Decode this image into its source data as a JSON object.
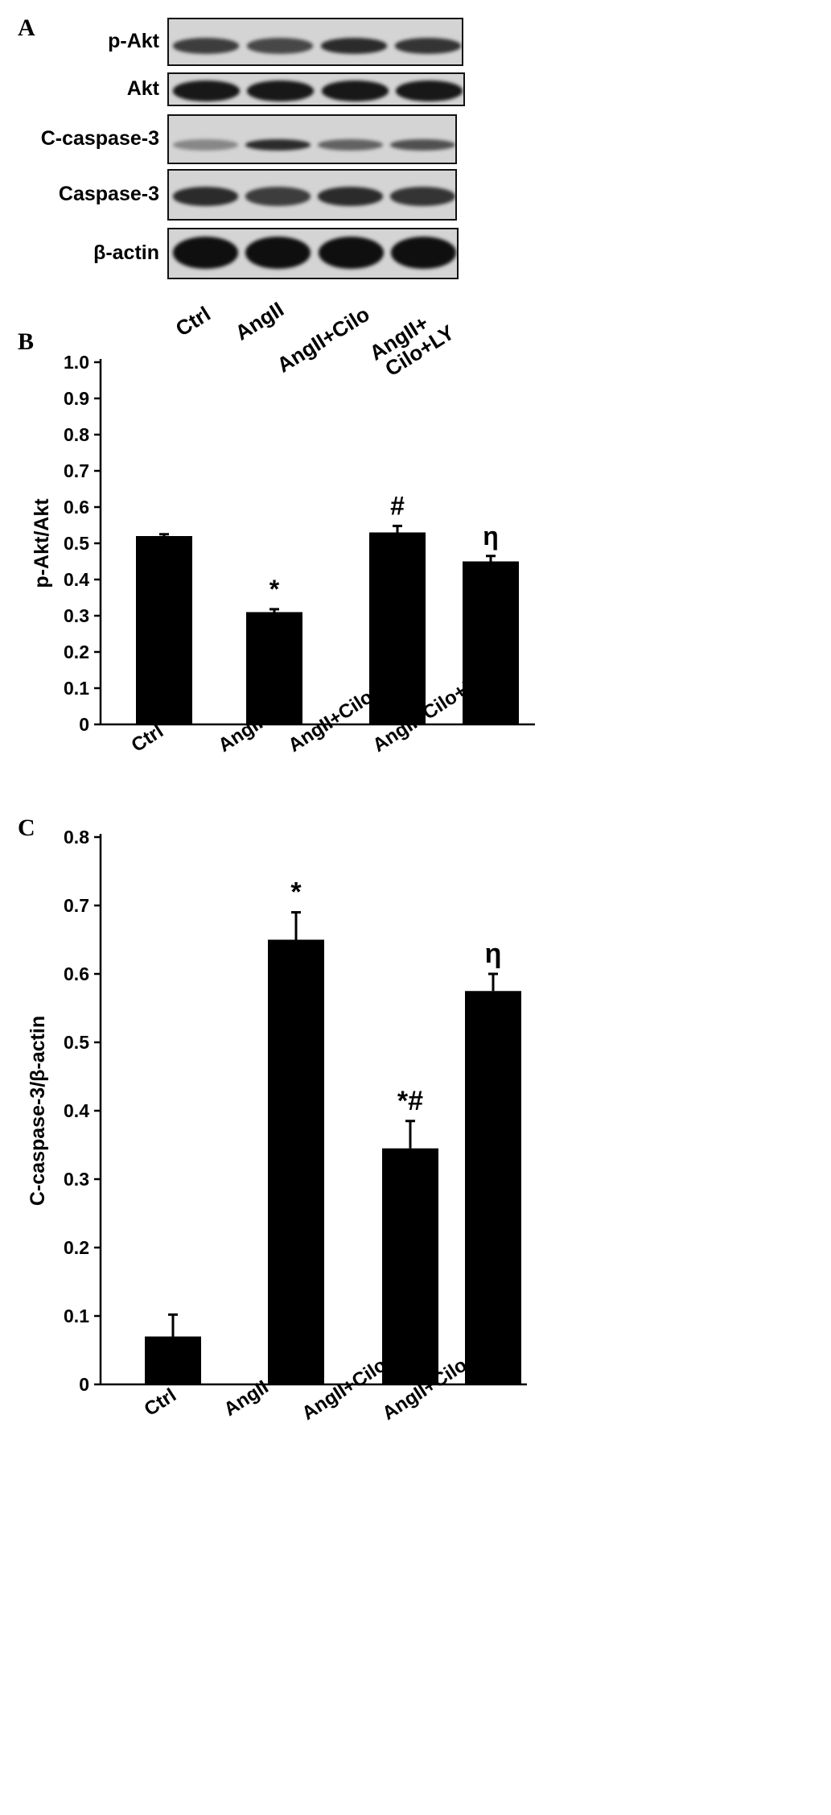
{
  "panel_a": {
    "letter": "A",
    "blots": [
      {
        "label": "p-Akt",
        "intensities": [
          0.75,
          0.7,
          0.85,
          0.8
        ]
      },
      {
        "label": "Akt",
        "intensities": [
          0.95,
          0.95,
          0.95,
          0.95
        ]
      },
      {
        "label": "C-caspase-3",
        "intensities": [
          0.35,
          0.85,
          0.55,
          0.65
        ]
      },
      {
        "label": "Caspase-3",
        "intensities": [
          0.85,
          0.75,
          0.85,
          0.8
        ]
      },
      {
        "label": "β-actin",
        "intensities": [
          1.0,
          1.0,
          1.0,
          1.0
        ]
      }
    ],
    "lanes": [
      {
        "line1": "Ctrl",
        "line2": ""
      },
      {
        "line1": "AngII",
        "line2": ""
      },
      {
        "line1": "AngII+Cilo",
        "line2": ""
      },
      {
        "line1": "AngII+",
        "line2": "Cilo+LY"
      }
    ]
  },
  "chart_data": [
    {
      "type": "bar",
      "panel": "B",
      "categories": [
        "Ctrl",
        "AngII",
        "AngII+Cilo",
        "AngII+Cilo+LY"
      ],
      "values": [
        0.52,
        0.31,
        0.53,
        0.45
      ],
      "errors": [
        0.005,
        0.008,
        0.018,
        0.015
      ],
      "annotations": [
        "",
        "*",
        "#",
        "η"
      ],
      "title": "",
      "xlabel": "",
      "ylabel": "p-Akt/Akt",
      "ylim": [
        0,
        1.0
      ],
      "yticks": [
        "0",
        "0.1",
        "0.2",
        "0.3",
        "0.4",
        "0.5",
        "0.6",
        "0.7",
        "0.8",
        "0.9",
        "1.0"
      ],
      "grid": false,
      "bar_color": "#000000"
    },
    {
      "type": "bar",
      "panel": "C",
      "categories": [
        "Ctrl",
        "AngII",
        "AngII+Cilo",
        "AngII+Cilo+LY"
      ],
      "values": [
        0.07,
        0.65,
        0.345,
        0.575
      ],
      "errors": [
        0.032,
        0.04,
        0.04,
        0.025
      ],
      "annotations": [
        "",
        "*",
        "*#",
        "η"
      ],
      "title": "",
      "xlabel": "",
      "ylabel": "C-caspase-3/β-actin",
      "ylim": [
        0,
        0.8
      ],
      "yticks": [
        "0",
        "0.1",
        "0.2",
        "0.3",
        "0.4",
        "0.5",
        "0.6",
        "0.7",
        "0.8"
      ],
      "grid": false,
      "bar_color": "#000000"
    }
  ]
}
